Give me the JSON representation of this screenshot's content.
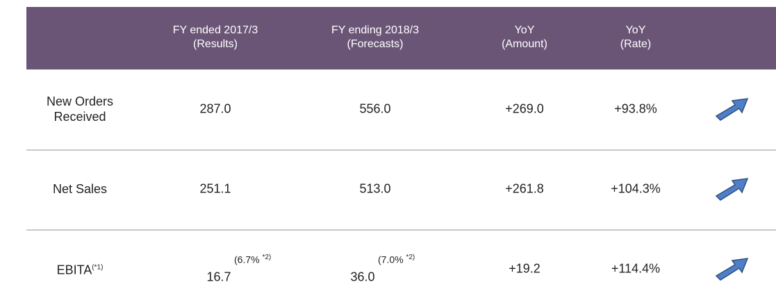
{
  "table": {
    "header": [
      {
        "line1": "FY ended  2017/3",
        "line2": "(Results)"
      },
      {
        "line1": "FY ending  2018/3",
        "line2": "(Forecasts)"
      },
      {
        "line1": "YoY",
        "line2": "(Amount)"
      },
      {
        "line1": "YoY",
        "line2": "(Rate)"
      }
    ],
    "rows": [
      {
        "label": "New Orders Received",
        "cells": [
          "287.0",
          "556.0",
          "+269.0",
          "+93.8%"
        ]
      },
      {
        "label": "Net Sales",
        "cells": [
          "251.1",
          "513.0",
          "+261.8",
          "+104.3%"
        ]
      },
      {
        "label": "EBITA",
        "label_note": "(*1)",
        "cells": [
          "16.7",
          "36.0",
          "+19.2",
          "+114.4%"
        ],
        "notes": [
          {
            "text": "(6.7%",
            "ref": "*2)"
          },
          {
            "text": "(7.0%",
            "ref": "*2)"
          }
        ]
      }
    ]
  }
}
